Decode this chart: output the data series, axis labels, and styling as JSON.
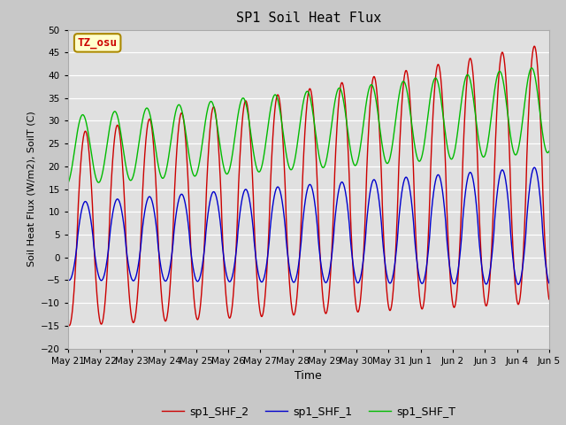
{
  "title": "SP1 Soil Heat Flux",
  "xlabel": "Time",
  "ylabel": "Soil Heat Flux (W/m2), SoilT (C)",
  "ylim": [
    -20,
    50
  ],
  "fig_bg_color": "#c8c8c8",
  "plot_bg_color": "#e0e0e0",
  "grid_color": "#f0f0f0",
  "annotation_text": "TZ_osu",
  "annotation_bg": "#ffffcc",
  "annotation_border": "#aa8800",
  "legend_entries": [
    "sp1_SHF_2",
    "sp1_SHF_1",
    "sp1_SHF_T"
  ],
  "line_colors": [
    "#cc0000",
    "#0000cc",
    "#00bb00"
  ],
  "xtick_labels": [
    "May 21",
    "May 22",
    "May 23",
    "May 24",
    "May 25",
    "May 26",
    "May 27",
    "May 28",
    "May 29",
    "May 30",
    "May 31",
    "Jun 1",
    "Jun 2",
    "Jun 3",
    "Jun 4",
    "Jun 5"
  ],
  "n_days": 15
}
